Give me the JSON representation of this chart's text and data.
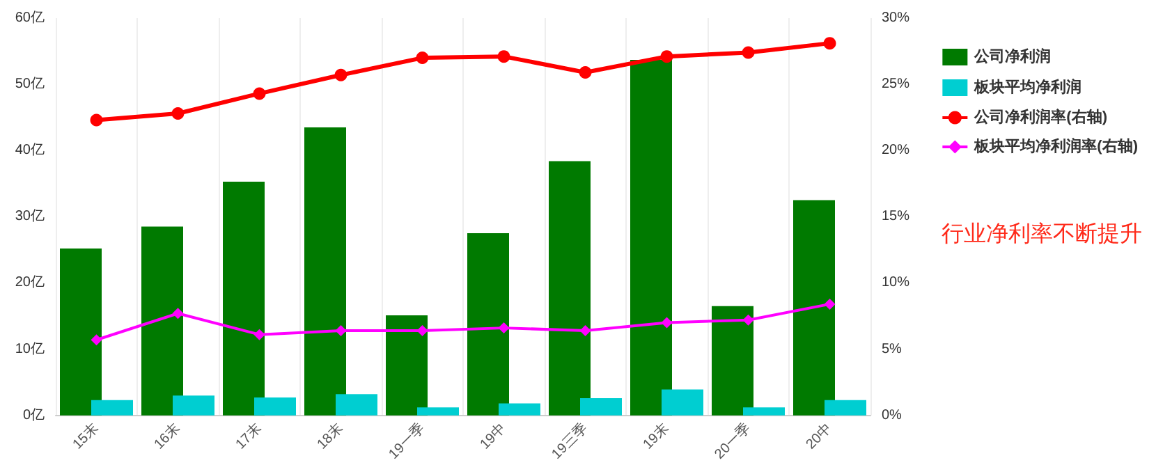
{
  "chart_data": {
    "type": "bar",
    "categories": [
      "15末",
      "16末",
      "17末",
      "18末",
      "19一季",
      "19中",
      "19三季",
      "19末",
      "20一季",
      "20中"
    ],
    "series": [
      {
        "name": "公司净利润",
        "color": "#007a00",
        "values": [
          25.2,
          28.5,
          35.3,
          43.5,
          15.1,
          27.5,
          38.4,
          53.7,
          16.5,
          32.5
        ]
      },
      {
        "name": "板块平均净利润",
        "color": "#00ced1",
        "values": [
          2.3,
          3.0,
          2.7,
          3.2,
          1.2,
          1.8,
          2.6,
          3.9,
          1.2,
          2.3
        ]
      },
      {
        "name": "公司净利润率(右轴)",
        "type": "line",
        "axis": "y2",
        "marker": "circle",
        "color": "#ff0000",
        "values": [
          22.3,
          22.8,
          24.3,
          25.7,
          27.0,
          27.1,
          25.9,
          27.1,
          27.4,
          28.1
        ]
      },
      {
        "name": "板块平均净利润率(右轴)",
        "type": "line",
        "axis": "y2",
        "marker": "diamond",
        "color": "#ff00ff",
        "values": [
          5.7,
          7.7,
          6.1,
          6.4,
          6.4,
          6.6,
          6.4,
          7.0,
          7.2,
          8.4
        ]
      }
    ],
    "ylim": [
      0,
      60
    ],
    "yticks": [
      {
        "value": 0,
        "label": "0亿"
      },
      {
        "value": 10,
        "label": "10亿"
      },
      {
        "value": 20,
        "label": "20亿"
      },
      {
        "value": 30,
        "label": "30亿"
      },
      {
        "value": 40,
        "label": "40亿"
      },
      {
        "value": 50,
        "label": "50亿"
      },
      {
        "value": 60,
        "label": "60亿"
      }
    ],
    "y2lim": [
      0,
      30
    ],
    "y2ticks": [
      {
        "value": 0,
        "label": "0%"
      },
      {
        "value": 5,
        "label": "5%"
      },
      {
        "value": 10,
        "label": "10%"
      },
      {
        "value": 15,
        "label": "15%"
      },
      {
        "value": 20,
        "label": "20%"
      },
      {
        "value": 25,
        "label": "25%"
      },
      {
        "value": 30,
        "label": "30%"
      }
    ],
    "grid": "x",
    "legend": "right",
    "line_style": "solid",
    "annotations": [
      "行业净利率不断提升"
    ]
  }
}
